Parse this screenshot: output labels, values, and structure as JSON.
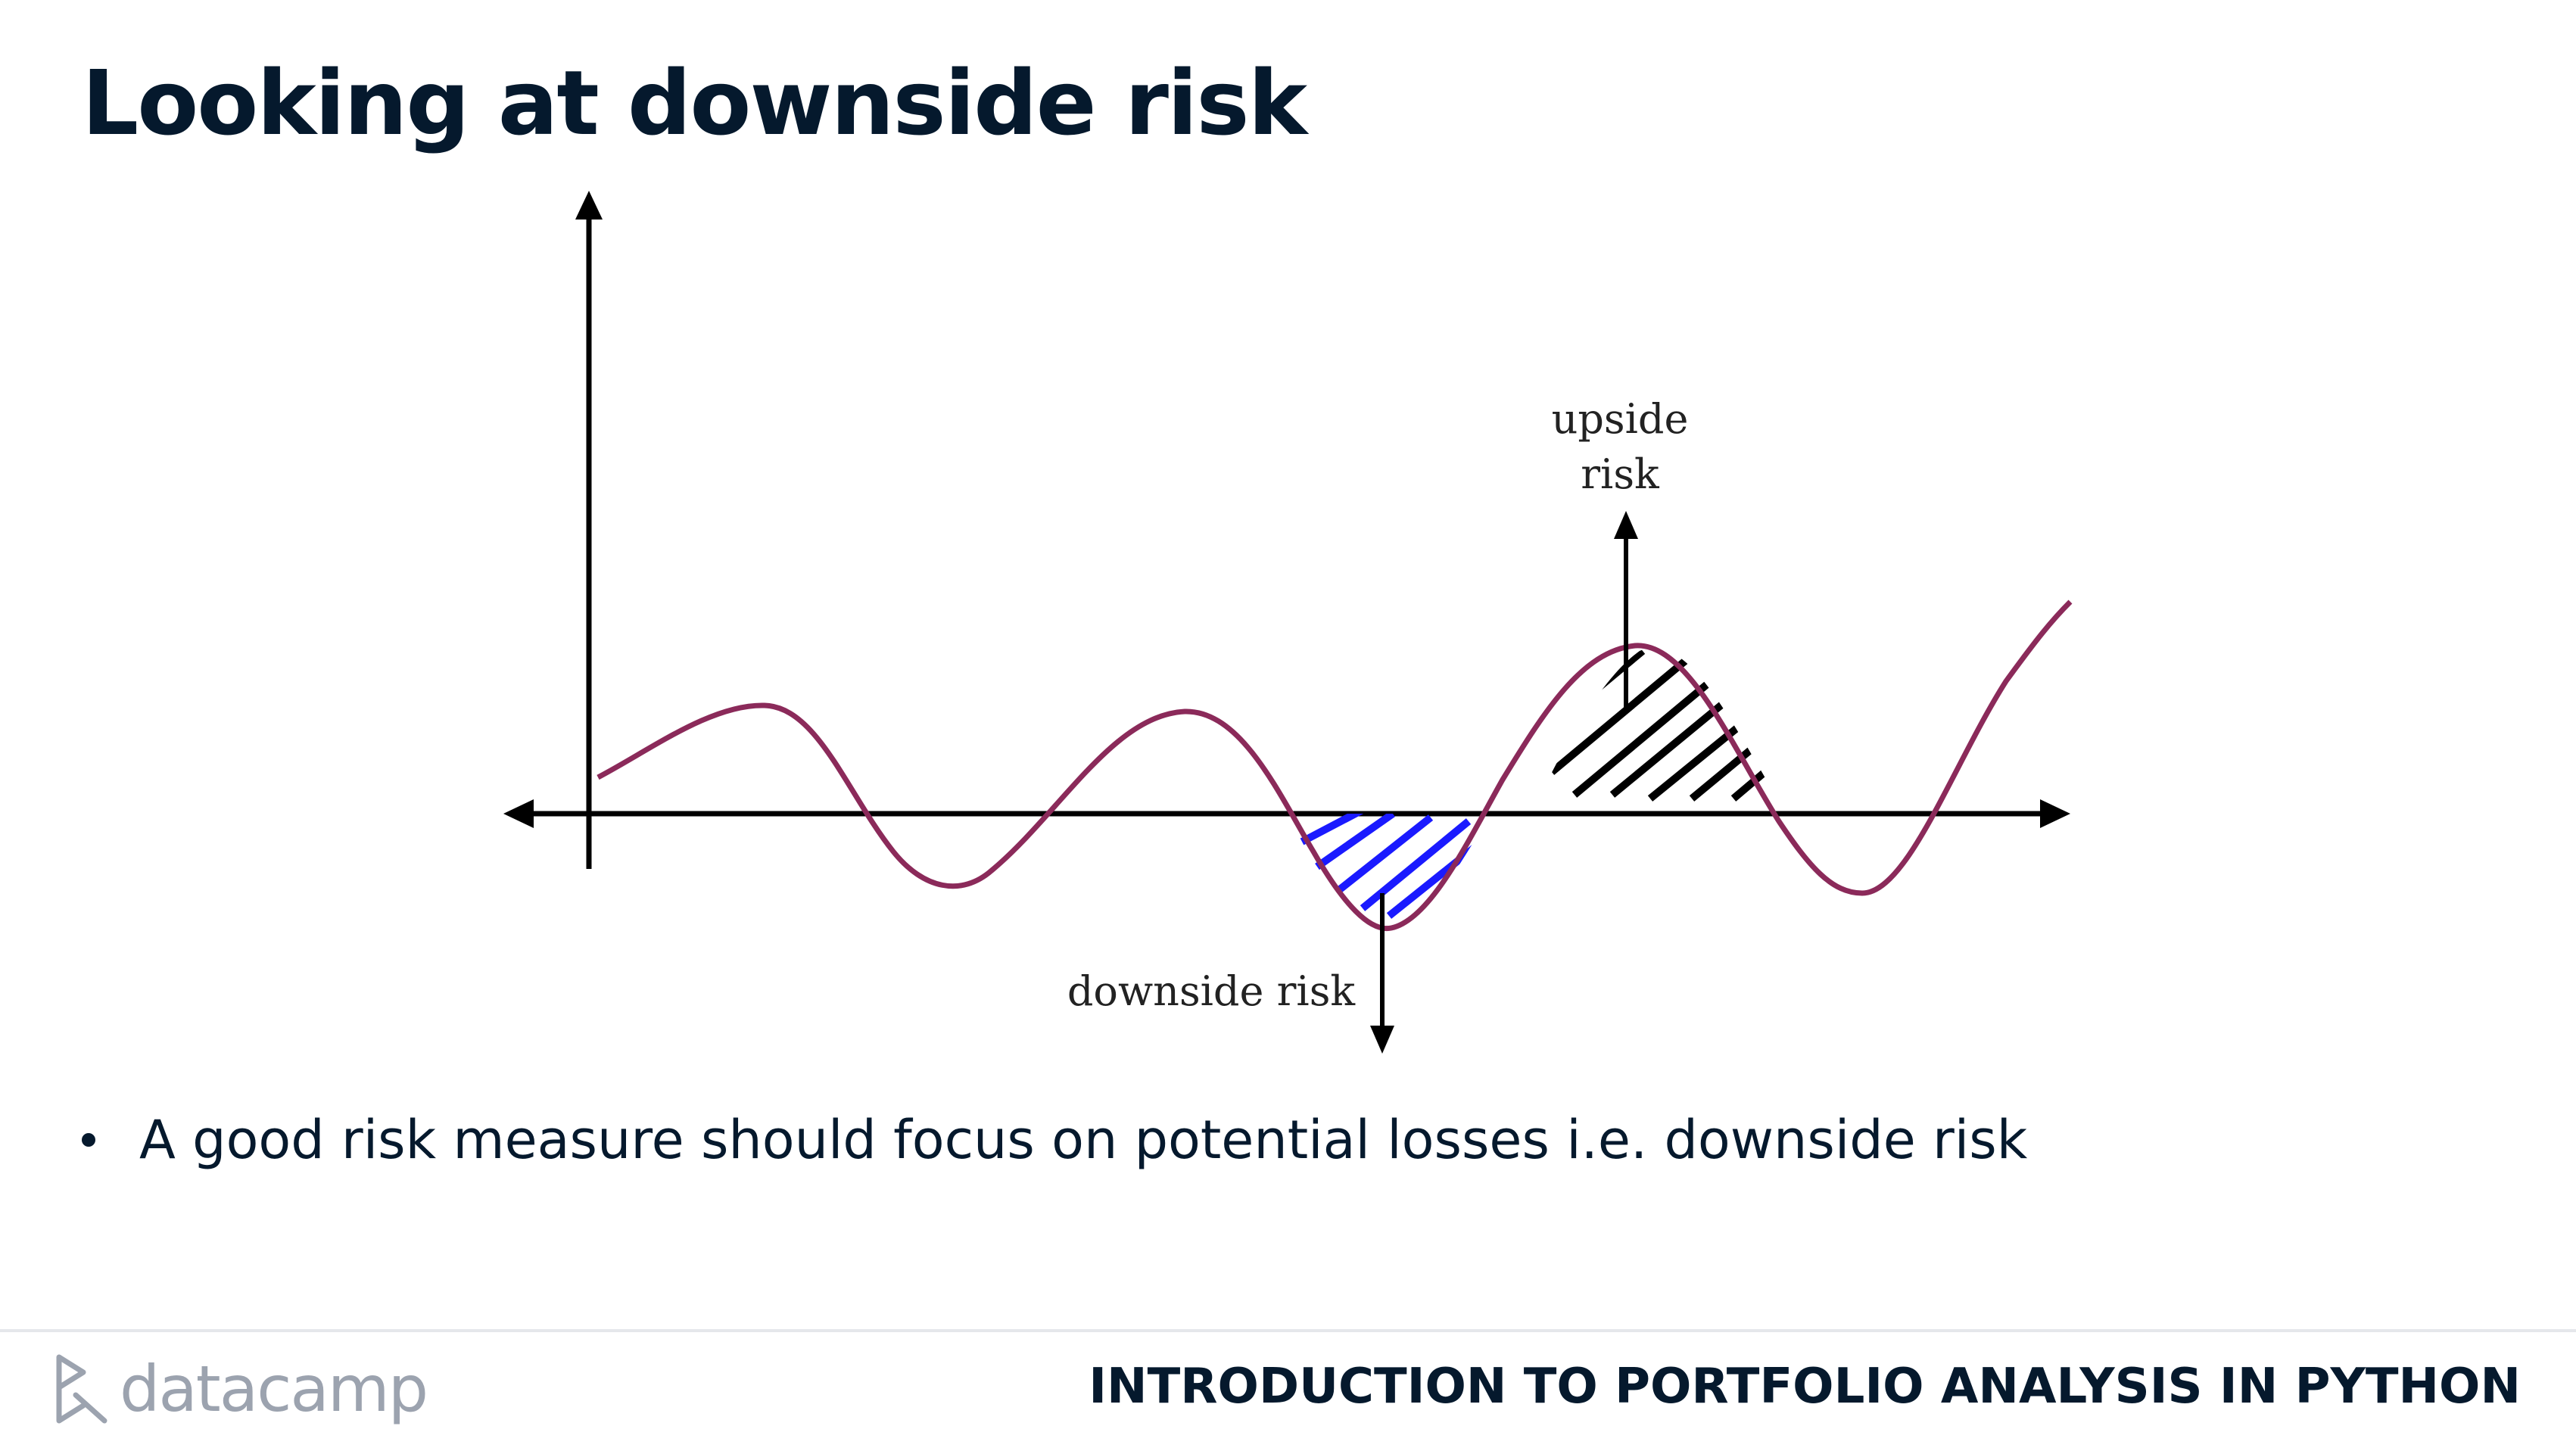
{
  "slide": {
    "title": "Looking at downside risk"
  },
  "diagram": {
    "upside_label_line1": "upside",
    "upside_label_line2": "risk",
    "downside_label": "downside risk",
    "curve_color": "#8b2a5a",
    "upside_hatch_color": "#000000",
    "downside_hatch_color": "#1a1aff"
  },
  "bullets": [
    "A good risk measure should focus on potential losses i.e. downside risk"
  ],
  "footer": {
    "logo_text": "datacamp",
    "course_title": "INTRODUCTION TO PORTFOLIO ANALYSIS IN PYTHON"
  }
}
